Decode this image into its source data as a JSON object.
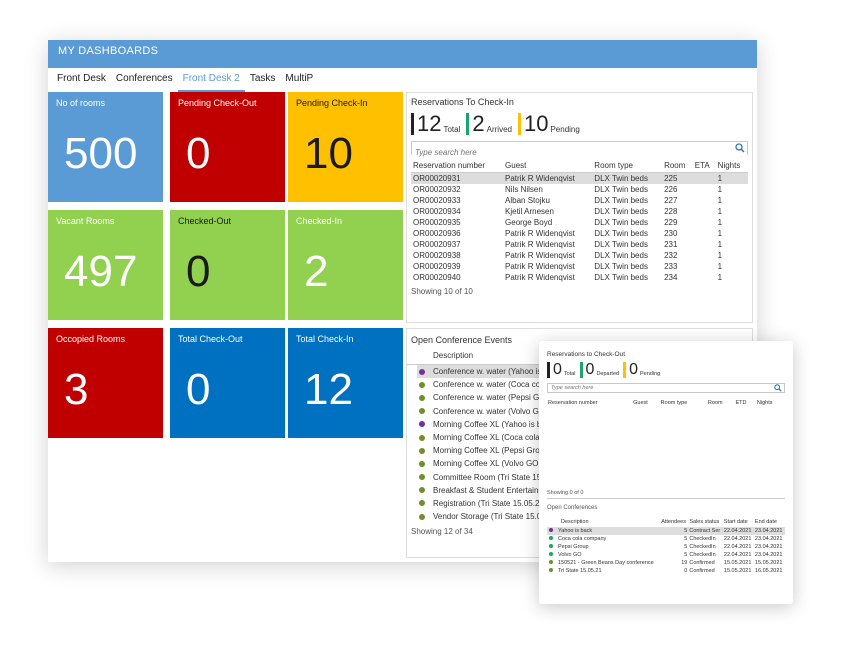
{
  "window": {
    "title": "MY DASHBOARDS"
  },
  "tabs": [
    {
      "label": "Front Desk",
      "active": false
    },
    {
      "label": "Conferences",
      "active": false
    },
    {
      "label": "Front Desk 2",
      "active": true
    },
    {
      "label": "Tasks",
      "active": false
    },
    {
      "label": "MultiP",
      "active": false
    }
  ],
  "tiles": [
    {
      "label": "No of rooms",
      "value": "500",
      "color": "#5b9bd5"
    },
    {
      "label": "Pending Check-Out",
      "value": "0",
      "color": "#c00000"
    },
    {
      "label": "Pending Check-In",
      "value": "10",
      "color": "#ffc000"
    },
    {
      "label": "Vacant Rooms",
      "value": "497",
      "color": "#92d050"
    },
    {
      "label": "Checked-Out",
      "value": "0",
      "color": "#92d050"
    },
    {
      "label": "Checked-In",
      "value": "2",
      "color": "#92d050"
    },
    {
      "label": "Occopied Rooms",
      "value": "3",
      "color": "#c00000"
    },
    {
      "label": "Total Check-Out",
      "value": "0",
      "color": "#0070c0"
    },
    {
      "label": "Total Check-In",
      "value": "12",
      "color": "#0070c0"
    }
  ],
  "checkin": {
    "title": "Reservations To Check-In",
    "stats": [
      {
        "value": "12",
        "label": "Total",
        "color": "#222222"
      },
      {
        "value": "2",
        "label": "Arrived",
        "color": "#1aa56e"
      },
      {
        "value": "10",
        "label": "Pending",
        "color": "#ffc000"
      }
    ],
    "search_placeholder": "Type search here",
    "columns": [
      "Reservation number",
      "Guest",
      "Room type",
      "Room",
      "ETA",
      "Nights"
    ],
    "rows": [
      [
        "OR00020931",
        "Patrik R Widenqvist",
        "DLX Twin beds",
        "225",
        "",
        "1"
      ],
      [
        "OR00020932",
        "Nils Nilsen",
        "DLX Twin beds",
        "226",
        "",
        "1"
      ],
      [
        "OR00020933",
        "Alban Stojku",
        "DLX Twin beds",
        "227",
        "",
        "1"
      ],
      [
        "OR00020934",
        "Kjetil Arnesen",
        "DLX Twin beds",
        "228",
        "",
        "1"
      ],
      [
        "OR00020935",
        "George Boyd",
        "DLX Twin beds",
        "229",
        "",
        "1"
      ],
      [
        "OR00020936",
        "Patrik R Widenqvist",
        "DLX Twin beds",
        "230",
        "",
        "1"
      ],
      [
        "OR00020937",
        "Patrik R Widenqvist",
        "DLX Twin beds",
        "231",
        "",
        "1"
      ],
      [
        "OR00020938",
        "Patrik R Widenqvist",
        "DLX Twin beds",
        "232",
        "",
        "1"
      ],
      [
        "OR00020939",
        "Patrik R Widenqvist",
        "DLX Twin beds",
        "233",
        "",
        "1"
      ],
      [
        "OR00020940",
        "Patrik R Widenqvist",
        "DLX Twin beds",
        "234",
        "",
        "1"
      ]
    ],
    "showing": "Showing 10 of 10"
  },
  "events": {
    "title": "Open Conference Events",
    "column": "Description",
    "rows": [
      {
        "text": "Conference w. water (Yahoo is",
        "dot": "purple"
      },
      {
        "text": "Conference w. water (Coca cola",
        "dot": "olive"
      },
      {
        "text": "Conference w. water (Pepsi Gr",
        "dot": "olive"
      },
      {
        "text": "Conference w. water (Volvo GO",
        "dot": "olive"
      },
      {
        "text": "Morning Coffee XL (Yahoo is ba",
        "dot": "purple"
      },
      {
        "text": "Morning Coffee XL (Coca cola c",
        "dot": "olive"
      },
      {
        "text": "Morning Coffee XL (Pepsi Grou",
        "dot": "olive"
      },
      {
        "text": "Morning Coffee XL (Volvo GO )",
        "dot": "olive"
      },
      {
        "text": "Committee Room (Tri State 15.0",
        "dot": "olive"
      },
      {
        "text": "Breakfast & Student Entertainm",
        "dot": "olive"
      },
      {
        "text": "Registration (Tri State 15.05.21",
        "dot": "olive"
      },
      {
        "text": "Vendor Storage (Tri State 15.05",
        "dot": "olive"
      }
    ],
    "showing": "Showing 12 of 34"
  },
  "popup": {
    "title": "Reservations to Check-Out",
    "stats": [
      {
        "value": "0",
        "label": "Total",
        "color": "#222222"
      },
      {
        "value": "0",
        "label": "Departed",
        "color": "#1aa56e"
      },
      {
        "value": "0",
        "label": "Pending",
        "color": "#ffc000"
      }
    ],
    "search_placeholder": "Type search here",
    "columns": [
      "Reservation number",
      "Guest",
      "Room type",
      "Room",
      "ETD",
      "Nights"
    ],
    "showing": "Showing 0 of 0",
    "conf_title": "Open Conferences",
    "conf_columns": [
      "Description",
      "Attendees",
      "Sales status",
      "Start date",
      "End date"
    ],
    "conf_rows": [
      {
        "desc": "Yahoo is back",
        "att": "5",
        "status": "Contract Ser",
        "start": "22.04.2021",
        "end": "23.04.2021",
        "dot": "purple"
      },
      {
        "desc": "Coca cola company",
        "att": "5",
        "status": "CheckedIn",
        "start": "22.04.2021",
        "end": "23.04.2021",
        "dot": "teal"
      },
      {
        "desc": "Pepsi Group",
        "att": "5",
        "status": "CheckedIn",
        "start": "22.04.2021",
        "end": "23.04.2021",
        "dot": "teal"
      },
      {
        "desc": "Volvo GO",
        "att": "5",
        "status": "CheckedIn",
        "start": "22.04.2021",
        "end": "23.04.2021",
        "dot": "teal"
      },
      {
        "desc": "150521 - Green Beans Day conference",
        "att": "19",
        "status": "Confirmed",
        "start": "15.05.2021",
        "end": "15.05.2021",
        "dot": "olive"
      },
      {
        "desc": "Tri State 15.05.21",
        "att": "0",
        "status": "Confirmed",
        "start": "15.05.2021",
        "end": "16.05.2021",
        "dot": "olive"
      }
    ]
  }
}
